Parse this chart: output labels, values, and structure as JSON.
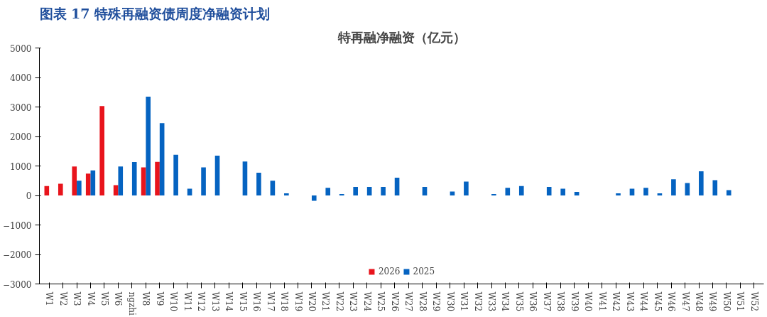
{
  "chart_data": {
    "type": "bar",
    "title": "图表 17 特殊再融资债周度净融资计划",
    "subtitle": "特再融净融资（亿元）",
    "categories": [
      "W1",
      "W2",
      "W3",
      "W4",
      "W5",
      "W6",
      "ngzhi",
      "W8",
      "W9",
      "W10",
      "W11",
      "W12",
      "W13",
      "W14",
      "W15",
      "W16",
      "W17",
      "W18",
      "W19",
      "W20",
      "W21",
      "W22",
      "W23",
      "W24",
      "W25",
      "W26",
      "W27",
      "W28",
      "W29",
      "W30",
      "W31",
      "W32",
      "W33",
      "W34",
      "W35",
      "W36",
      "W37",
      "W38",
      "W39",
      "W40",
      "W41",
      "W42",
      "W43",
      "W44",
      "W45",
      "W46",
      "W47",
      "W48",
      "W49",
      "W50",
      "W51",
      "W52"
    ],
    "series": [
      {
        "name": "2026",
        "color": "#e8141c",
        "values": [
          320,
          400,
          980,
          740,
          3030,
          350,
          null,
          950,
          1140,
          null,
          null,
          null,
          null,
          null,
          null,
          null,
          null,
          null,
          null,
          null,
          null,
          null,
          null,
          null,
          null,
          null,
          null,
          null,
          null,
          null,
          null,
          null,
          null,
          null,
          null,
          null,
          null,
          null,
          null,
          null,
          null,
          null,
          null,
          null,
          null,
          null,
          null,
          null,
          null,
          null,
          null,
          null
        ]
      },
      {
        "name": "2025",
        "color": "#0563c1",
        "values": [
          null,
          null,
          500,
          850,
          null,
          980,
          1130,
          3350,
          2450,
          1380,
          230,
          950,
          1350,
          null,
          1150,
          770,
          500,
          70,
          null,
          -180,
          260,
          50,
          290,
          290,
          290,
          600,
          null,
          290,
          null,
          130,
          470,
          null,
          50,
          260,
          320,
          null,
          290,
          230,
          120,
          null,
          null,
          70,
          230,
          260,
          70,
          550,
          420,
          820,
          520,
          180,
          null,
          null
        ]
      }
    ],
    "ylim": [
      -3000,
      5000
    ],
    "yticks": [
      -3000,
      -2000,
      -1000,
      0,
      1000,
      2000,
      3000,
      4000,
      5000
    ],
    "grid": false,
    "legend": "bottom"
  }
}
